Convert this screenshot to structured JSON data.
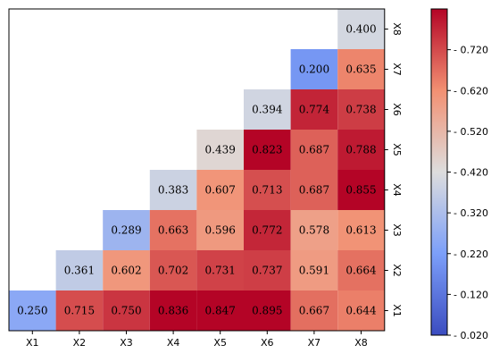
{
  "chart_data": {
    "type": "heatmap",
    "title": "",
    "xlabel": "",
    "ylabel": "",
    "x_labels": [
      "X1",
      "X2",
      "X3",
      "X4",
      "X5",
      "X6",
      "X7",
      "X8"
    ],
    "y_labels": [
      "X1",
      "X2",
      "X3",
      "X4",
      "X5",
      "X6",
      "X7",
      "X8"
    ],
    "layout": "lower-left triangle, X1 at bottom row",
    "colormap": "coolwarm",
    "vmin": 0.02,
    "vmax": 0.82,
    "colorbar_ticks": [
      "0.020",
      "0.120",
      "0.220",
      "0.320",
      "0.420",
      "0.520",
      "0.620",
      "0.720"
    ],
    "colorbar_position": "right",
    "matrix": [
      [
        0.25,
        0.715,
        0.75,
        0.836,
        0.847,
        0.895,
        0.667,
        0.644
      ],
      [
        null,
        0.361,
        0.602,
        0.702,
        0.731,
        0.737,
        0.591,
        0.664
      ],
      [
        null,
        null,
        0.289,
        0.663,
        0.596,
        0.772,
        0.578,
        0.613
      ],
      [
        null,
        null,
        null,
        0.383,
        0.607,
        0.713,
        0.687,
        0.855
      ],
      [
        null,
        null,
        null,
        null,
        0.439,
        0.823,
        0.687,
        0.788
      ],
      [
        null,
        null,
        null,
        null,
        null,
        0.394,
        0.774,
        0.738
      ],
      [
        null,
        null,
        null,
        null,
        null,
        null,
        0.2,
        0.635
      ],
      [
        null,
        null,
        null,
        null,
        null,
        null,
        null,
        0.4
      ]
    ],
    "colors": {
      "low": "#3b4cc0",
      "mid": "#dddddd",
      "high": "#b40426"
    }
  }
}
